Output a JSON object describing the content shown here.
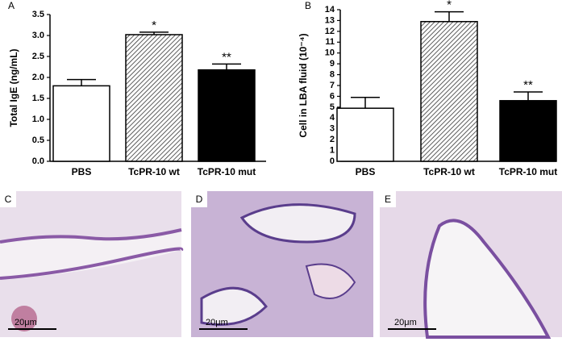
{
  "chart_data": [
    {
      "type": "bar",
      "panel_label": "A",
      "ylabel": "Total IgE (ng/mL)",
      "categories": [
        "PBS",
        "TcPR-10 wt",
        "TcPR-10 mut"
      ],
      "values": [
        1.8,
        3.02,
        2.18
      ],
      "errors": [
        0.15,
        0.06,
        0.14
      ],
      "significance": [
        null,
        "*",
        "**"
      ],
      "fills": [
        "#ffffff",
        "hatch",
        "#000000"
      ],
      "ylim": [
        0,
        3.5
      ],
      "yticks": [
        {
          "value": 0,
          "label": "0.0"
        },
        0.5,
        {
          "value": 1,
          "label": "1.0"
        },
        1.5,
        {
          "value": 2,
          "label": "2.0"
        },
        2.5,
        {
          "value": 3,
          "label": "3.0"
        },
        3.5
      ]
    },
    {
      "type": "bar",
      "panel_label": "B",
      "ylabel": "Cell in LBA fluid (10⁻⁴)",
      "categories": [
        "PBS",
        "TcPR-10 wt",
        "TcPR-10 mut"
      ],
      "values": [
        4.9,
        12.9,
        5.6
      ],
      "errors": [
        1.0,
        0.9,
        0.8
      ],
      "significance": [
        null,
        "*",
        "**"
      ],
      "fills": [
        "#ffffff",
        "hatch",
        "#000000"
      ],
      "ylim": [
        0,
        14
      ],
      "yticks": [
        0,
        1,
        2,
        3,
        4,
        5,
        6,
        7,
        8,
        9,
        10,
        11,
        12,
        13,
        14
      ]
    }
  ],
  "panels": [
    {
      "label": "C",
      "scale_bar": "20μm"
    },
    {
      "label": "D",
      "scale_bar": "20μm"
    },
    {
      "label": "E",
      "scale_bar": "20μm"
    }
  ]
}
